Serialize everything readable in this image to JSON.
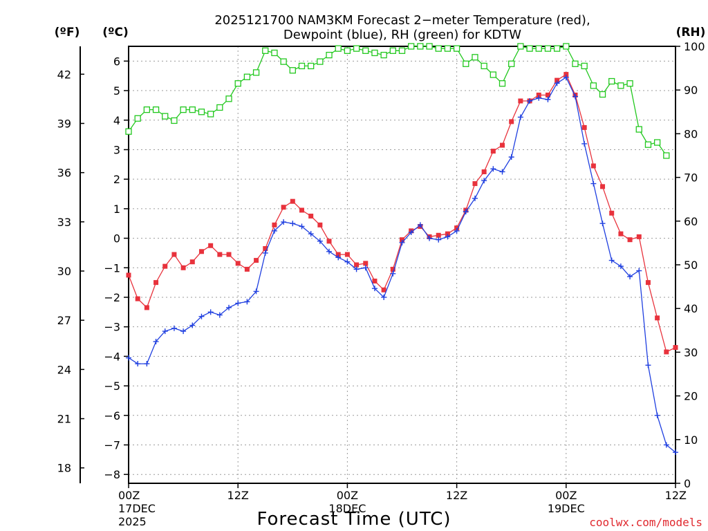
{
  "title": {
    "line1": "2025121700 NAM3KM Forecast 2−meter Temperature (red),",
    "line2": "Dewpoint (blue), RH (green) for KDTW"
  },
  "units": {
    "fahrenheit": "(ºF)",
    "celsius": "(ºC)",
    "rh": "(RH)"
  },
  "xaxis": {
    "title": "Forecast Time (UTC)",
    "ticks": [
      {
        "hour": 0,
        "label": "00Z",
        "date": "17DEC",
        "year": "2025"
      },
      {
        "hour": 12,
        "label": "12Z",
        "date": "",
        "year": ""
      },
      {
        "hour": 24,
        "label": "00Z",
        "date": "18DEC",
        "year": ""
      },
      {
        "hour": 36,
        "label": "12Z",
        "date": "",
        "year": ""
      },
      {
        "hour": 48,
        "label": "00Z",
        "date": "19DEC",
        "year": ""
      },
      {
        "hour": 60,
        "label": "12Z",
        "date": "",
        "year": ""
      }
    ]
  },
  "credit": "coolwx.com/models",
  "colors": {
    "temperature": "#e8323c",
    "dewpoint": "#1f3fe0",
    "rh": "#22c81e",
    "grid": "#9a9a9a",
    "credit": "#e0282e"
  },
  "chart_data": {
    "type": "line",
    "x_unit": "forecast hour",
    "xlim": [
      0,
      60
    ],
    "ylim_c": [
      -8.3,
      6.5
    ],
    "ylim_rh": [
      0,
      100
    ],
    "yticks_c": [
      -8,
      -7,
      -6,
      -5,
      -4,
      -3,
      -2,
      -1,
      0,
      1,
      2,
      3,
      4,
      5,
      6
    ],
    "yticks_c_labels": [
      "−8",
      "−7",
      "−6",
      "−5",
      "−4",
      "−3",
      "−2",
      "−1",
      "0",
      "1",
      "2",
      "3",
      "4",
      "5",
      "6"
    ],
    "yticks_f": [
      18,
      21,
      24,
      27,
      30,
      33,
      36,
      39,
      42
    ],
    "yticks_rh": [
      0,
      10,
      20,
      30,
      40,
      50,
      60,
      70,
      80,
      90,
      100
    ],
    "series": [
      {
        "name": "Temperature",
        "axis": "c",
        "marker": "filled-square",
        "x": [
          0,
          1,
          2,
          3,
          4,
          5,
          6,
          7,
          8,
          9,
          10,
          11,
          12,
          13,
          14,
          15,
          16,
          17,
          18,
          19,
          20,
          21,
          22,
          23,
          24,
          25,
          26,
          27,
          28,
          29,
          30,
          31,
          32,
          33,
          34,
          35,
          36,
          37,
          38,
          39,
          40,
          41,
          42,
          43,
          44,
          45,
          46,
          47,
          48,
          49,
          50,
          51,
          52,
          53,
          54,
          55,
          56,
          57,
          58,
          59,
          60
        ],
        "values": [
          -1.25,
          -2.05,
          -2.35,
          -1.5,
          -0.95,
          -0.55,
          -1.0,
          -0.8,
          -0.45,
          -0.25,
          -0.55,
          -0.55,
          -0.85,
          -1.05,
          -0.75,
          -0.35,
          0.45,
          1.05,
          1.25,
          0.95,
          0.75,
          0.45,
          -0.1,
          -0.55,
          -0.55,
          -0.9,
          -0.85,
          -1.45,
          -1.75,
          -1.05,
          -0.05,
          0.25,
          0.4,
          0.05,
          0.1,
          0.15,
          0.35,
          0.95,
          1.85,
          2.25,
          2.95,
          3.15,
          3.95,
          4.65,
          4.65,
          4.85,
          4.85,
          5.35,
          5.55,
          4.85,
          3.75,
          2.45,
          1.75,
          0.85,
          0.15,
          -0.05,
          0.05,
          -1.5,
          -2.7,
          -3.85,
          -3.7
        ]
      },
      {
        "name": "Dewpoint",
        "axis": "c",
        "marker": "plus",
        "x": [
          0,
          1,
          2,
          3,
          4,
          5,
          6,
          7,
          8,
          9,
          10,
          11,
          12,
          13,
          14,
          15,
          16,
          17,
          18,
          19,
          20,
          21,
          22,
          23,
          24,
          25,
          26,
          27,
          28,
          29,
          30,
          31,
          32,
          33,
          34,
          35,
          36,
          37,
          38,
          39,
          40,
          41,
          42,
          43,
          44,
          45,
          46,
          47,
          48,
          49,
          50,
          51,
          52,
          53,
          54,
          55,
          56,
          57,
          58,
          59,
          60
        ],
        "values": [
          -4.05,
          -4.25,
          -4.25,
          -3.5,
          -3.15,
          -3.05,
          -3.15,
          -2.95,
          -2.65,
          -2.5,
          -2.6,
          -2.35,
          -2.2,
          -2.15,
          -1.8,
          -0.5,
          0.25,
          0.55,
          0.5,
          0.4,
          0.15,
          -0.1,
          -0.45,
          -0.65,
          -0.8,
          -1.05,
          -1.0,
          -1.7,
          -2.0,
          -1.2,
          -0.15,
          0.2,
          0.45,
          0.0,
          -0.05,
          0.05,
          0.25,
          0.9,
          1.35,
          1.95,
          2.35,
          2.25,
          2.75,
          4.1,
          4.65,
          4.75,
          4.7,
          5.25,
          5.45,
          4.8,
          3.2,
          1.85,
          0.5,
          -0.75,
          -0.95,
          -1.3,
          -1.1,
          -4.3,
          -6.0,
          -7.0,
          -7.25
        ]
      },
      {
        "name": "RH",
        "axis": "rh",
        "marker": "open-square",
        "x": [
          0,
          1,
          2,
          3,
          4,
          5,
          6,
          7,
          8,
          9,
          10,
          11,
          12,
          13,
          14,
          15,
          16,
          17,
          18,
          19,
          20,
          21,
          22,
          23,
          24,
          25,
          26,
          27,
          28,
          29,
          30,
          31,
          32,
          33,
          34,
          35,
          36,
          37,
          38,
          39,
          40,
          41,
          42,
          43,
          44,
          45,
          46,
          47,
          48,
          49,
          50,
          51,
          52,
          53,
          54,
          55,
          56,
          57,
          58,
          59,
          60
        ],
        "values": [
          80.5,
          83.5,
          85.5,
          85.5,
          84.0,
          83.0,
          85.5,
          85.5,
          85.0,
          84.5,
          86.0,
          88.0,
          91.5,
          93.0,
          94.0,
          99.0,
          98.5,
          96.5,
          94.5,
          95.5,
          95.5,
          96.5,
          98.0,
          99.5,
          99.0,
          99.5,
          99.0,
          98.5,
          98.0,
          99.0,
          99.0,
          100,
          100,
          100,
          99.5,
          99.5,
          99.5,
          96.0,
          97.5,
          95.5,
          93.5,
          91.5,
          96.0,
          100,
          99.5,
          99.5,
          99.5,
          99.5,
          100,
          96.0,
          95.5,
          91.0,
          89.0,
          92.0,
          91.0,
          91.5,
          81.0,
          77.5,
          78.0,
          75.0,
          null
        ]
      }
    ]
  }
}
